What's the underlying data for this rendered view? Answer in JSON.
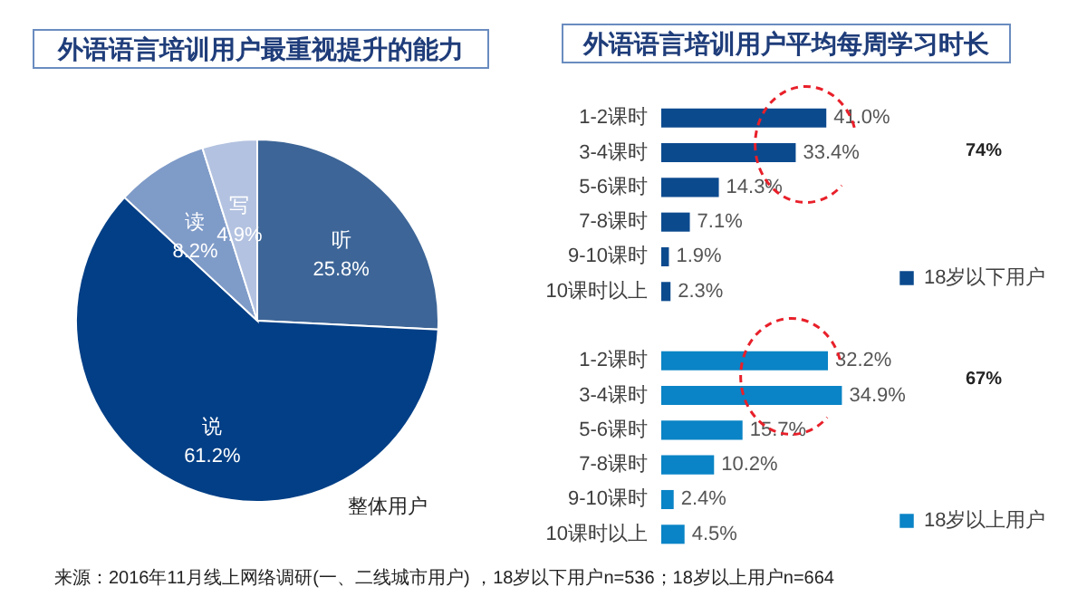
{
  "chart_data": [
    {
      "type": "pie",
      "title": "外语语言培训用户最重视提升的能力",
      "categories": [
        "听",
        "说",
        "读",
        "写"
      ],
      "values": [
        25.8,
        61.2,
        8.2,
        4.9
      ],
      "colors": [
        "#3d6597",
        "#033f86",
        "#7f9bc8",
        "#b3c2e0"
      ],
      "value_labels": [
        "25.8%",
        "61.2%",
        "8.2%",
        "4.9%"
      ],
      "annotations": [
        "整体用户",
        "来源：2016年11月线上网络调研(一、二线城市用户) ，18岁以下用户n=536；18岁以上用户n=664"
      ],
      "legend": false
    },
    {
      "type": "bar",
      "orientation": "horizontal",
      "title": "外语语言培训用户平均每周学习时长",
      "categories": [
        "1-2课时",
        "3-4课时",
        "5-6课时",
        "7-8课时",
        "9-10课时",
        "10课时以上"
      ],
      "series": [
        {
          "name": "18岁以下用户",
          "color": "#0c4a8e",
          "values": [
            41.0,
            33.4,
            14.3,
            7.1,
            1.9,
            2.3
          ],
          "value_labels": [
            "41.0%",
            "33.4%",
            "14.3%",
            "7.1%",
            "1.9%",
            "2.3%"
          ]
        }
      ],
      "annotations": [
        "74%"
      ],
      "legend": "bottom right"
    },
    {
      "type": "bar",
      "orientation": "horizontal",
      "categories": [
        "1-2课时",
        "3-4课时",
        "5-6课时",
        "7-8课时",
        "9-10课时",
        "10课时以上"
      ],
      "series": [
        {
          "name": "18岁以上用户",
          "color": "#0a84c6",
          "values": [
            32.2,
            34.9,
            15.7,
            10.2,
            2.4,
            4.5
          ],
          "value_labels": [
            "32.2%",
            "34.9%",
            "15.7%",
            "10.2%",
            "2.4%",
            "4.5%"
          ]
        }
      ],
      "annotations": [
        "67%"
      ],
      "legend": "bottom right"
    }
  ]
}
